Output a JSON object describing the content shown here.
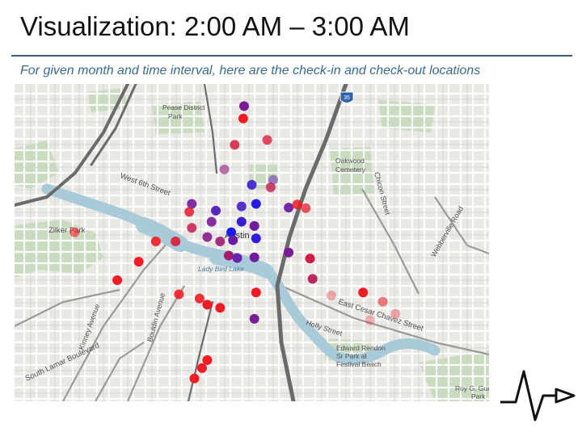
{
  "header": {
    "title": "Visualization: 2:00 AM – 3:00 AM",
    "subtitle": "For given month and time interval, here are the check-in and check-out locations"
  },
  "colors": {
    "rule": "#3b5c7a",
    "subtitle": "#3a6a8c",
    "map_background": "#e9e8e4",
    "water": "#a9cbd9",
    "park": "#c9dcc0",
    "highway": "#6b6b6b",
    "check_in": "#ee1c25",
    "check_out": "#1c1cee"
  },
  "map": {
    "labels": {
      "pease_1": "Pease District",
      "pease_2": "Park",
      "oakwood_1": "Oakwood",
      "oakwood_2": "Cemetery",
      "west_6th": "West 6th Street",
      "zilker": "Zilker Park",
      "austin": "Austin",
      "lady_bird": "Lady Bird Lake",
      "east_cesar": "East Cesar Chavez Street",
      "holly": "Holly Street",
      "edward_1": "Edward Rendon",
      "edward_2": "Sr Park at",
      "edward_3": "Festival Beach",
      "lamar": "South Lamar Boulevard",
      "kinney": "Kinney Avenue",
      "bouldin": "Bouldin Avenue",
      "chicon": "Chicon Street",
      "webberville": "Webberville Road",
      "roy_1": "Roy G. Guerr",
      "roy_2": "Park",
      "shield": "35"
    },
    "points": [
      {
        "lon": -97.7432,
        "lat": 30.2818,
        "mix": 0.55,
        "opacity": 1.0
      },
      {
        "lon": -97.7433,
        "lat": 30.2798,
        "mix": 0.0,
        "opacity": 1.0
      },
      {
        "lon": -97.7443,
        "lat": 30.2755,
        "mix": 0.1,
        "opacity": 0.85
      },
      {
        "lon": -97.7405,
        "lat": 30.2763,
        "mix": 0.1,
        "opacity": 0.8
      },
      {
        "lon": -97.7455,
        "lat": 30.2715,
        "mix": 0.45,
        "opacity": 0.6
      },
      {
        "lon": -97.7423,
        "lat": 30.269,
        "mix": 0.85,
        "opacity": 0.9
      },
      {
        "lon": -97.7398,
        "lat": 30.2698,
        "mix": 0.7,
        "opacity": 0.5
      },
      {
        "lon": -97.7401,
        "lat": 30.2686,
        "mix": 0.2,
        "opacity": 0.8
      },
      {
        "lon": -97.7493,
        "lat": 30.2659,
        "mix": 0.6,
        "opacity": 0.9
      },
      {
        "lon": -97.7496,
        "lat": 30.2646,
        "mix": 0.05,
        "opacity": 0.85
      },
      {
        "lon": -97.7465,
        "lat": 30.2648,
        "mix": 0.75,
        "opacity": 0.95
      },
      {
        "lon": -97.7435,
        "lat": 30.2655,
        "mix": 0.8,
        "opacity": 0.9
      },
      {
        "lon": -97.7418,
        "lat": 30.2659,
        "mix": 0.95,
        "opacity": 1.0
      },
      {
        "lon": -97.738,
        "lat": 30.2653,
        "mix": 0.6,
        "opacity": 0.95
      },
      {
        "lon": -97.747,
        "lat": 30.263,
        "mix": 0.55,
        "opacity": 0.9
      },
      {
        "lon": -97.7435,
        "lat": 30.263,
        "mix": 0.85,
        "opacity": 1.0
      },
      {
        "lon": -97.742,
        "lat": 30.2623,
        "mix": 0.6,
        "opacity": 1.0
      },
      {
        "lon": -97.7447,
        "lat": 30.2613,
        "mix": 1.0,
        "opacity": 1.0
      },
      {
        "lon": -97.7418,
        "lat": 30.2603,
        "mix": 0.9,
        "opacity": 1.0
      },
      {
        "lon": -97.7475,
        "lat": 30.2605,
        "mix": 0.5,
        "opacity": 0.9
      },
      {
        "lon": -97.746,
        "lat": 30.2598,
        "mix": 0.4,
        "opacity": 0.9
      },
      {
        "lon": -97.7445,
        "lat": 30.26,
        "mix": 0.65,
        "opacity": 1.0
      },
      {
        "lon": -97.7512,
        "lat": 30.2598,
        "mix": 0.1,
        "opacity": 0.9
      },
      {
        "lon": -97.7493,
        "lat": 30.262,
        "mix": 0.2,
        "opacity": 0.85
      },
      {
        "lon": -97.7535,
        "lat": 30.2598,
        "mix": 0.0,
        "opacity": 0.9
      },
      {
        "lon": -97.7555,
        "lat": 30.2565,
        "mix": 0.0,
        "opacity": 1.0
      },
      {
        "lon": -97.745,
        "lat": 30.2575,
        "mix": 0.35,
        "opacity": 1.0
      },
      {
        "lon": -97.744,
        "lat": 30.2571,
        "mix": 0.65,
        "opacity": 0.95
      },
      {
        "lon": -97.742,
        "lat": 30.2572,
        "mix": 0.6,
        "opacity": 1.0
      },
      {
        "lon": -97.738,
        "lat": 30.258,
        "mix": 0.55,
        "opacity": 1.0
      },
      {
        "lon": -97.758,
        "lat": 30.2535,
        "mix": 0.0,
        "opacity": 1.0
      },
      {
        "lon": -97.737,
        "lat": 30.2658,
        "mix": 0.0,
        "opacity": 0.85
      },
      {
        "lon": -97.736,
        "lat": 30.2652,
        "mix": 0.05,
        "opacity": 0.75
      },
      {
        "lon": -97.7352,
        "lat": 30.2537,
        "mix": 0.25,
        "opacity": 0.95
      },
      {
        "lon": -97.763,
        "lat": 30.2613,
        "mix": 0.0,
        "opacity": 0.6
      },
      {
        "lon": -97.7508,
        "lat": 30.2512,
        "mix": 0.0,
        "opacity": 0.9
      },
      {
        "lon": -97.7484,
        "lat": 30.2505,
        "mix": 0.0,
        "opacity": 0.9
      },
      {
        "lon": -97.7475,
        "lat": 30.2495,
        "mix": 0.0,
        "opacity": 1.0
      },
      {
        "lon": -97.746,
        "lat": 30.249,
        "mix": 0.0,
        "opacity": 1.0
      },
      {
        "lon": -97.7418,
        "lat": 30.2515,
        "mix": 0.0,
        "opacity": 1.0
      },
      {
        "lon": -97.742,
        "lat": 30.2472,
        "mix": 0.55,
        "opacity": 1.0
      },
      {
        "lon": -97.7475,
        "lat": 30.2405,
        "mix": 0.0,
        "opacity": 1.0
      },
      {
        "lon": -97.7481,
        "lat": 30.2392,
        "mix": 0.0,
        "opacity": 1.0
      },
      {
        "lon": -97.749,
        "lat": 30.2375,
        "mix": 0.0,
        "opacity": 1.0
      },
      {
        "lon": -97.7355,
        "lat": 30.257,
        "mix": 0.15,
        "opacity": 1.0
      },
      {
        "lon": -97.733,
        "lat": 30.251,
        "mix": 0.0,
        "opacity": 0.35
      },
      {
        "lon": -97.7293,
        "lat": 30.2515,
        "mix": 0.0,
        "opacity": 1.0
      },
      {
        "lon": -97.727,
        "lat": 30.25,
        "mix": 0.0,
        "opacity": 0.55
      },
      {
        "lon": -97.7285,
        "lat": 30.247,
        "mix": 0.0,
        "opacity": 0.3
      },
      {
        "lon": -97.7255,
        "lat": 30.248,
        "mix": 0.0,
        "opacity": 0.35
      }
    ]
  }
}
